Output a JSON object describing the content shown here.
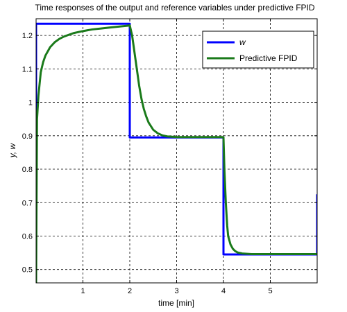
{
  "chart_data": {
    "type": "line",
    "title": "Time responses of the output and reference variables under predictive FPID",
    "xlabel": "time [min]",
    "ylabel": "y, w",
    "xlim": [
      0,
      6
    ],
    "ylim": [
      0.46,
      1.25
    ],
    "xticks": [
      1,
      2,
      3,
      4,
      5
    ],
    "yticks": [
      0.5,
      0.6,
      0.7,
      0.8,
      0.9,
      1.0,
      1.1,
      1.2
    ],
    "xtick_labels": [
      "1",
      "2",
      "3",
      "4",
      "5"
    ],
    "ytick_labels": [
      "0.5",
      "0.6",
      "0.7",
      "0.8",
      "0.9",
      "1",
      "1.1",
      "1.2"
    ],
    "grid": true,
    "legend_position": "top-right",
    "series": [
      {
        "name": "w",
        "color": "#0000ff",
        "x": [
          0,
          0,
          2,
          2,
          4,
          4,
          6,
          6
        ],
        "y": [
          0.46,
          1.235,
          1.235,
          0.895,
          0.895,
          0.545,
          0.545,
          0.725
        ]
      },
      {
        "name": "Predictive FPID",
        "color": "#1a7a1a",
        "x": [
          0,
          0.02,
          0.05,
          0.1,
          0.15,
          0.2,
          0.3,
          0.4,
          0.5,
          0.6,
          0.8,
          1.0,
          1.2,
          1.4,
          1.6,
          1.8,
          1.95,
          2.0,
          2.05,
          2.1,
          2.15,
          2.2,
          2.25,
          2.3,
          2.35,
          2.4,
          2.5,
          2.6,
          2.7,
          2.8,
          3.0,
          3.5,
          3.98,
          4.0,
          4.02,
          4.05,
          4.08,
          4.1,
          4.15,
          4.2,
          4.25,
          4.3,
          4.4,
          4.6,
          5.0,
          6.0
        ],
        "y": [
          0.46,
          0.95,
          1.02,
          1.09,
          1.12,
          1.14,
          1.165,
          1.18,
          1.19,
          1.197,
          1.207,
          1.213,
          1.218,
          1.221,
          1.224,
          1.227,
          1.229,
          1.23,
          1.2,
          1.15,
          1.1,
          1.05,
          1.01,
          0.98,
          0.958,
          0.94,
          0.918,
          0.907,
          0.901,
          0.898,
          0.896,
          0.896,
          0.896,
          0.895,
          0.8,
          0.7,
          0.63,
          0.6,
          0.575,
          0.562,
          0.555,
          0.551,
          0.548,
          0.546,
          0.546,
          0.546
        ]
      }
    ]
  }
}
